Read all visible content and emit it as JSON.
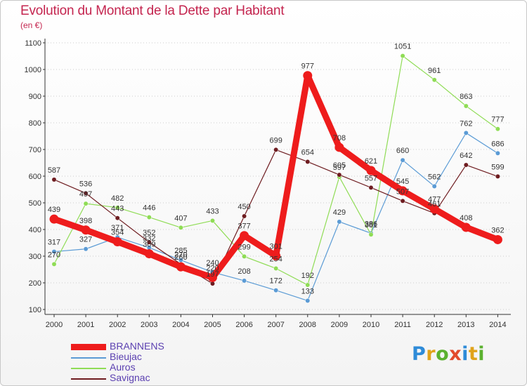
{
  "title": "Evolution du Montant de la Dette par Habitant",
  "unit_label": "(en €)",
  "logo": {
    "text": "Proxiti",
    "letters": [
      {
        "ch": "P",
        "color": "#2e8bd8"
      },
      {
        "ch": "r",
        "color": "#e0a31a"
      },
      {
        "ch": "o",
        "color": "#5bb12f"
      },
      {
        "ch": "x",
        "color": "#e24a2c"
      },
      {
        "ch": "i",
        "color": "#2e8bd8"
      },
      {
        "ch": "t",
        "color": "#e0a31a"
      },
      {
        "ch": "i",
        "color": "#5bb12f"
      }
    ]
  },
  "colors": {
    "BRANNENS": "#ee1c1c",
    "Bieujac": "#5b9bd5",
    "Auros": "#8fdc55",
    "Savignac": "#6e1c20",
    "axis": "#333333",
    "grid": "#cccccc",
    "tick_text": "#333333",
    "label_text": "#333333",
    "legend_text": "#5a3fb0"
  },
  "chart_data": {
    "type": "line",
    "title": "Evolution du Montant de la Dette par Habitant",
    "ylabel": "(en €)",
    "xlabel": "",
    "x": [
      "2000",
      "2001",
      "2002",
      "2003",
      "2004",
      "2005",
      "2006",
      "2007",
      "2008",
      "2009",
      "2010",
      "2011",
      "2012",
      "2013",
      "2014"
    ],
    "ylim": [
      100,
      1100
    ],
    "yticks": [
      100,
      200,
      300,
      400,
      500,
      600,
      700,
      800,
      900,
      1000,
      1100
    ],
    "grid": "horizontal",
    "legend_position": "bottom-left",
    "series": [
      {
        "name": "BRANNENS",
        "values": [
          439,
          398,
          354,
          309,
          260,
          220,
          377,
          301,
          977,
          708,
          621,
          545,
          477,
          408,
          362
        ],
        "thick": true
      },
      {
        "name": "Bieujac",
        "values": [
          317,
          327,
          371,
          332,
          285,
          240,
          208,
          172,
          133,
          429,
          386,
          660,
          562,
          762,
          686
        ]
      },
      {
        "name": "Auros",
        "values": [
          270,
          497,
          482,
          446,
          407,
          433,
          299,
          254,
          192,
          597,
          381,
          1051,
          961,
          863,
          777
        ]
      },
      {
        "name": "Savignac",
        "values": [
          587,
          536,
          443,
          352,
          270,
          197,
          450,
          699,
          654,
          605,
          557,
          507,
          461,
          642,
          599
        ]
      }
    ]
  }
}
